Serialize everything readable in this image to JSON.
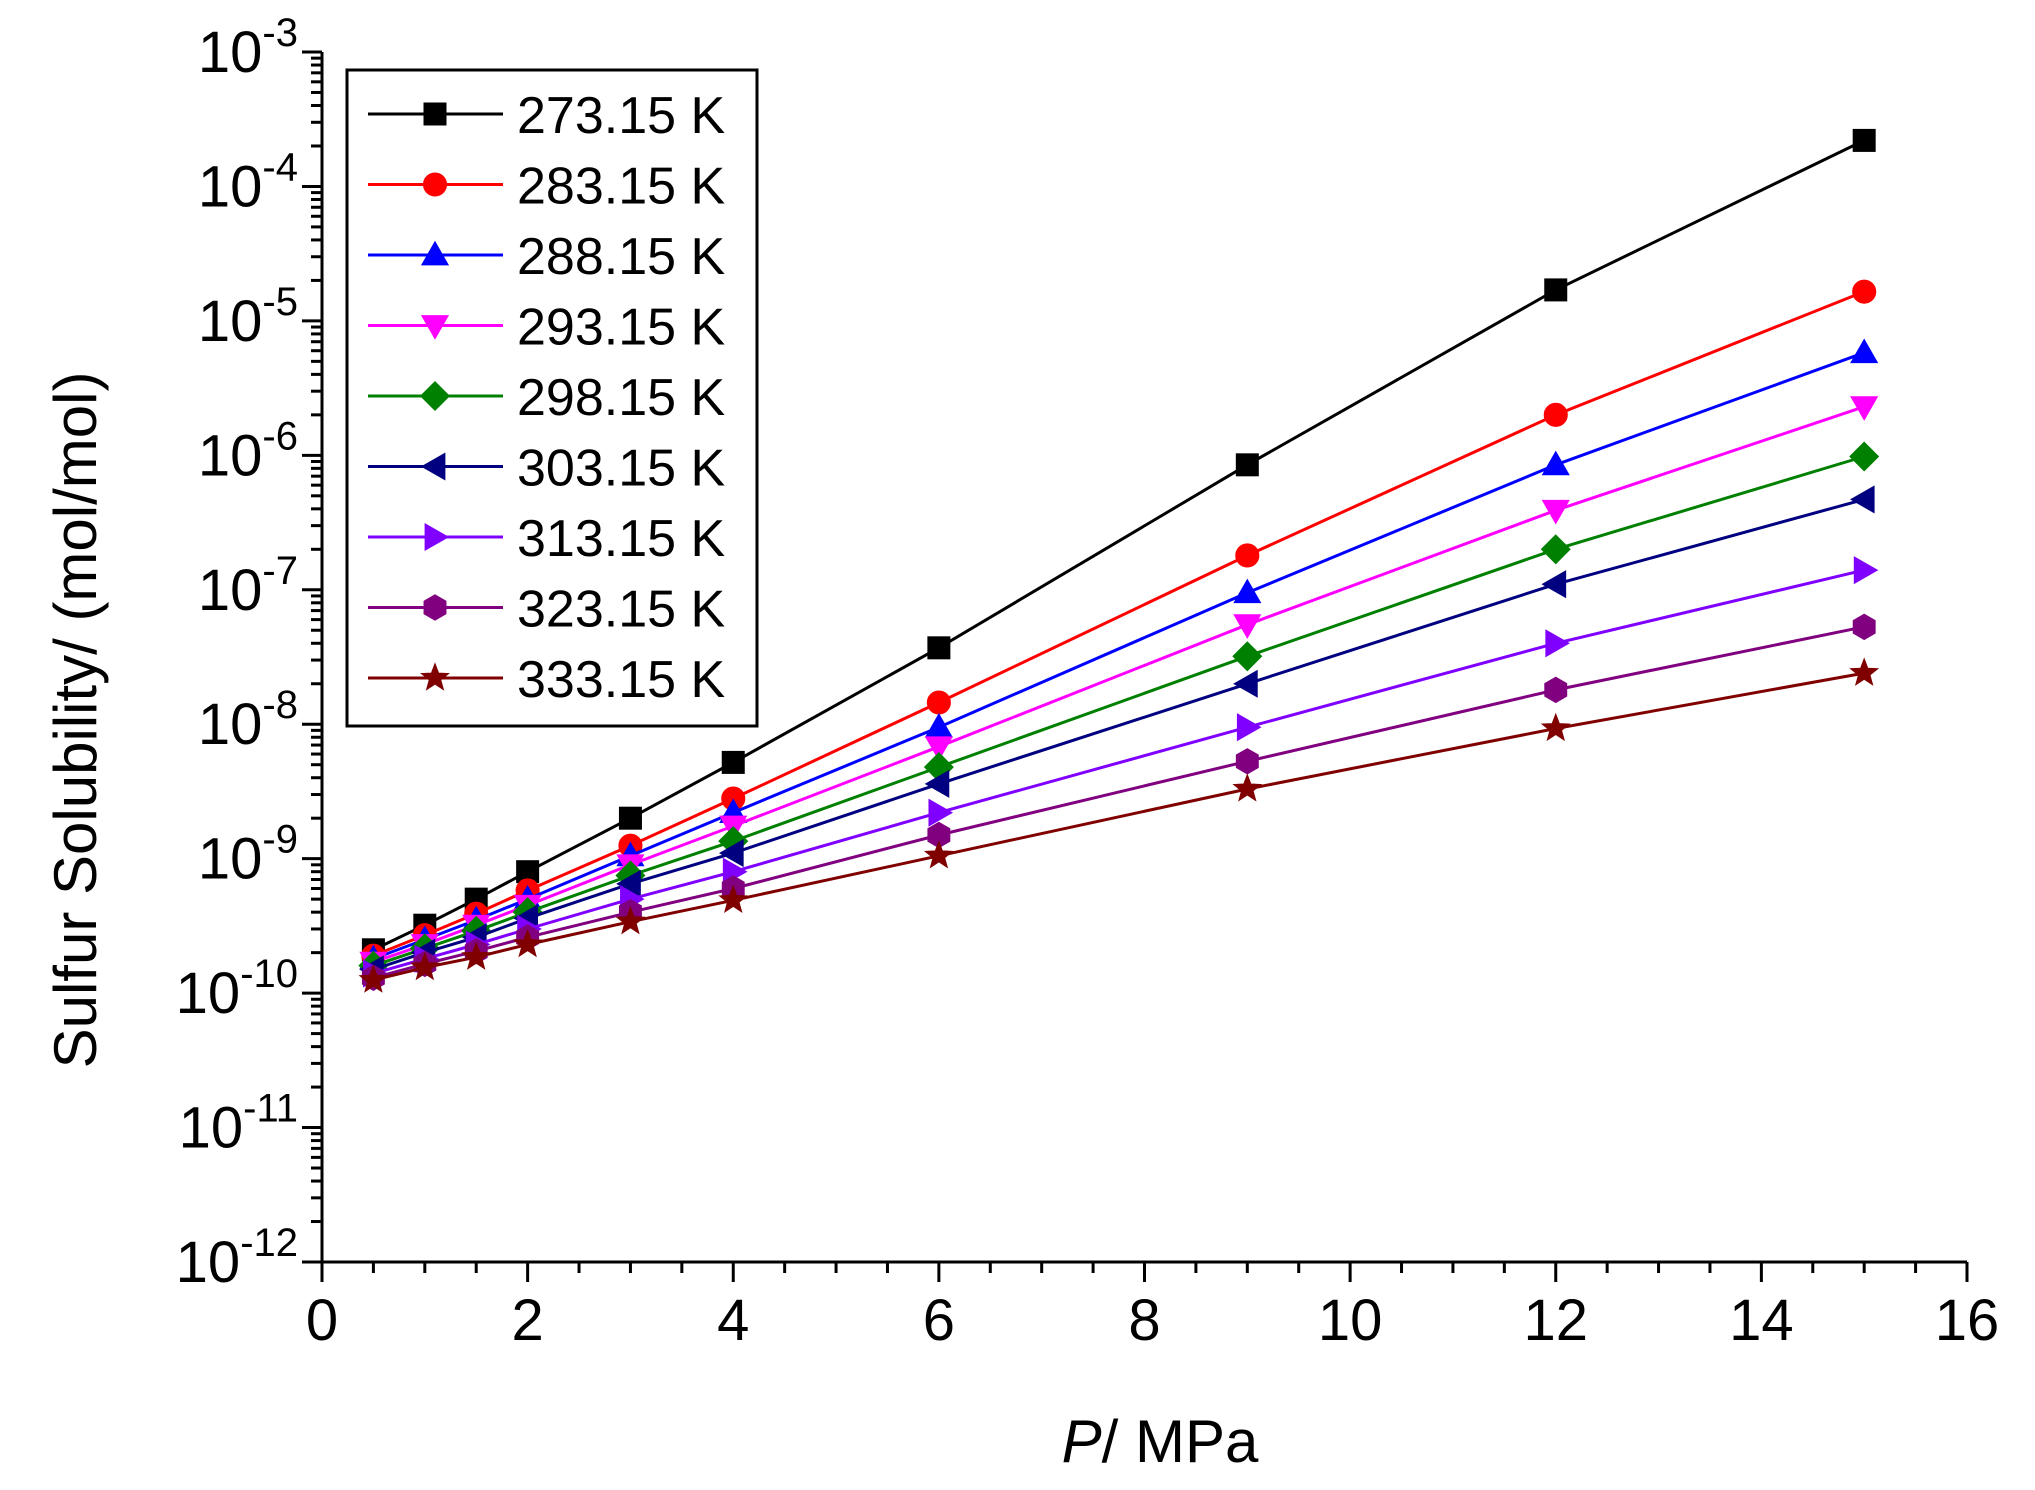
{
  "chart_data": {
    "type": "line",
    "title": "",
    "xlabel_italic": "P",
    "xlabel_rest": "/ MPa",
    "ylabel": "Sulfur Solubility/ (mol/mol)",
    "xlim": [
      0,
      16
    ],
    "ylim_log10": [
      -12,
      -3
    ],
    "y_scale": "log",
    "x_ticks": [
      "0",
      "2",
      "4",
      "6",
      "8",
      "10",
      "12",
      "14",
      "16"
    ],
    "y_tick_base": "10",
    "y_tick_exponents": [
      "-12",
      "-11",
      "-10",
      "-9",
      "-8",
      "-7",
      "-6",
      "-5",
      "-4",
      "-3"
    ],
    "legend_position": "top-left",
    "grid": false,
    "x": [
      0.5,
      1,
      1.5,
      2,
      3,
      4,
      6,
      9,
      12,
      15
    ],
    "series": [
      {
        "name": "273.15 K",
        "color": "#000000",
        "marker": "square",
        "values": [
          2.1e-10,
          3.2e-10,
          5e-10,
          8e-10,
          2e-09,
          5.2e-09,
          3.7e-08,
          8.5e-07,
          1.7e-05,
          0.00022
        ]
      },
      {
        "name": "283.15 K",
        "color": "#ff0000",
        "marker": "circle",
        "values": [
          1.9e-10,
          2.7e-10,
          3.9e-10,
          5.8e-10,
          1.25e-09,
          2.8e-09,
          1.45e-08,
          1.8e-07,
          2e-06,
          1.65e-05
        ]
      },
      {
        "name": "288.15 K",
        "color": "#0000ff",
        "marker": "triangle-up",
        "values": [
          1.8e-10,
          2.5e-10,
          3.5e-10,
          5e-10,
          1.05e-09,
          2.2e-09,
          9.5e-09,
          9.5e-08,
          8.5e-07,
          5.8e-06
        ]
      },
      {
        "name": "293.15 K",
        "color": "#ff00ff",
        "marker": "triangle-down",
        "values": [
          1.7e-10,
          2.3e-10,
          3.2e-10,
          4.5e-10,
          9e-10,
          1.75e-09,
          6.8e-09,
          5.5e-08,
          3.9e-07,
          2.3e-06
        ]
      },
      {
        "name": "298.15 K",
        "color": "#008000",
        "marker": "diamond",
        "values": [
          1.6e-10,
          2.15e-10,
          2.9e-10,
          4e-10,
          7.5e-10,
          1.35e-09,
          4.8e-09,
          3.2e-08,
          2e-07,
          9.8e-07
        ]
      },
      {
        "name": "303.15 K",
        "color": "#000080",
        "marker": "triangle-left",
        "values": [
          1.5e-10,
          2e-10,
          2.6e-10,
          3.6e-10,
          6.5e-10,
          1.1e-09,
          3.6e-09,
          2e-08,
          1.1e-07,
          4.7e-07
        ]
      },
      {
        "name": "313.15 K",
        "color": "#8000ff",
        "marker": "triangle-right",
        "values": [
          1.4e-10,
          1.8e-10,
          2.3e-10,
          3e-10,
          5e-10,
          8e-10,
          2.2e-09,
          9.5e-09,
          4e-08,
          1.4e-07
        ]
      },
      {
        "name": "323.15 K",
        "color": "#800080",
        "marker": "hexagon",
        "values": [
          1.3e-10,
          1.65e-10,
          2.05e-10,
          2.6e-10,
          4e-10,
          6e-10,
          1.5e-09,
          5.3e-09,
          1.8e-08,
          5.3e-08
        ]
      },
      {
        "name": "333.15 K",
        "color": "#800000",
        "marker": "star",
        "values": [
          1.25e-10,
          1.55e-10,
          1.85e-10,
          2.3e-10,
          3.4e-10,
          4.9e-10,
          1.05e-09,
          3.3e-09,
          9.3e-09,
          2.4e-08
        ]
      }
    ]
  }
}
